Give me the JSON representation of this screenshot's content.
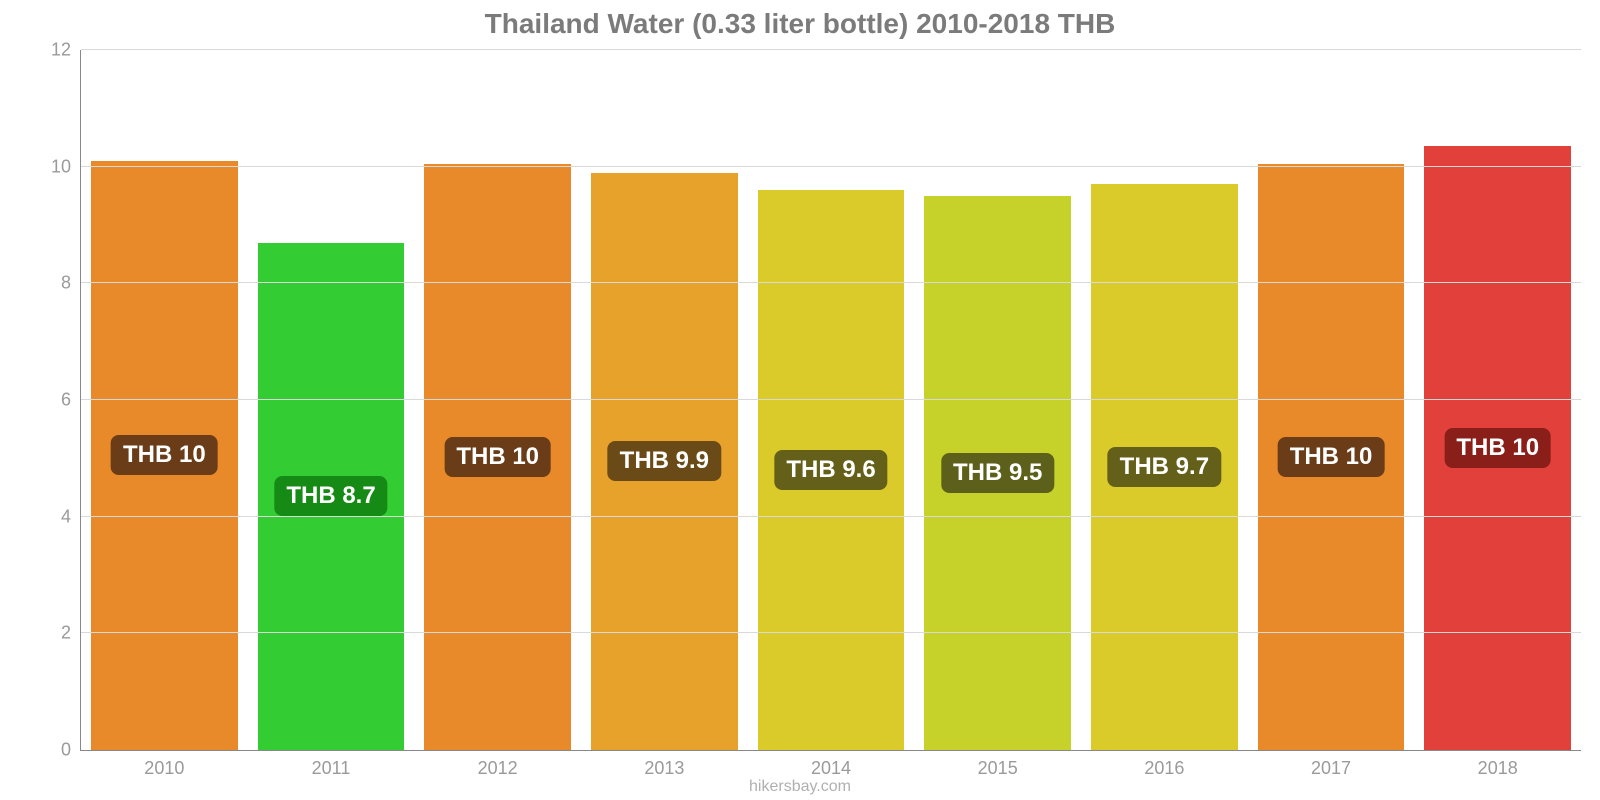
{
  "chart": {
    "type": "bar",
    "title": "Thailand Water (0.33 liter bottle) 2010-2018 THB",
    "title_color": "#7b7b7b",
    "title_fontsize": 28,
    "background_color": "#ffffff",
    "grid_color": "#d9d9d9",
    "axis_color": "#888888",
    "categories": [
      "2010",
      "2011",
      "2012",
      "2013",
      "2014",
      "2015",
      "2016",
      "2017",
      "2018"
    ],
    "values": [
      10.1,
      8.7,
      10.05,
      9.9,
      9.6,
      9.5,
      9.7,
      10.05,
      10.35
    ],
    "value_labels": [
      "THB 10",
      "THB 8.7",
      "THB 10",
      "THB 9.9",
      "THB 9.6",
      "THB 9.5",
      "THB 9.7",
      "THB 10",
      "THB 10"
    ],
    "bar_colors": [
      "#e88a2a",
      "#33cc33",
      "#e88a2a",
      "#e6a22a",
      "#dacb2a",
      "#c6d22a",
      "#dacb2a",
      "#e88a2a",
      "#e1413a"
    ],
    "badge_colors": [
      "#6a3c17",
      "#158a15",
      "#6a3c17",
      "#6a4a17",
      "#64601a",
      "#5c601a",
      "#64601a",
      "#6a3c17",
      "#8a1f1a"
    ],
    "ylim": [
      0,
      12
    ],
    "yticks": [
      0,
      2,
      4,
      6,
      8,
      10,
      12
    ],
    "label_fontsize": 18,
    "label_color": "#9a9a9a",
    "badge_fontsize": 24,
    "bar_width_pct": 88,
    "credit": "hikersbay.com",
    "credit_color": "#b0b0b0"
  }
}
